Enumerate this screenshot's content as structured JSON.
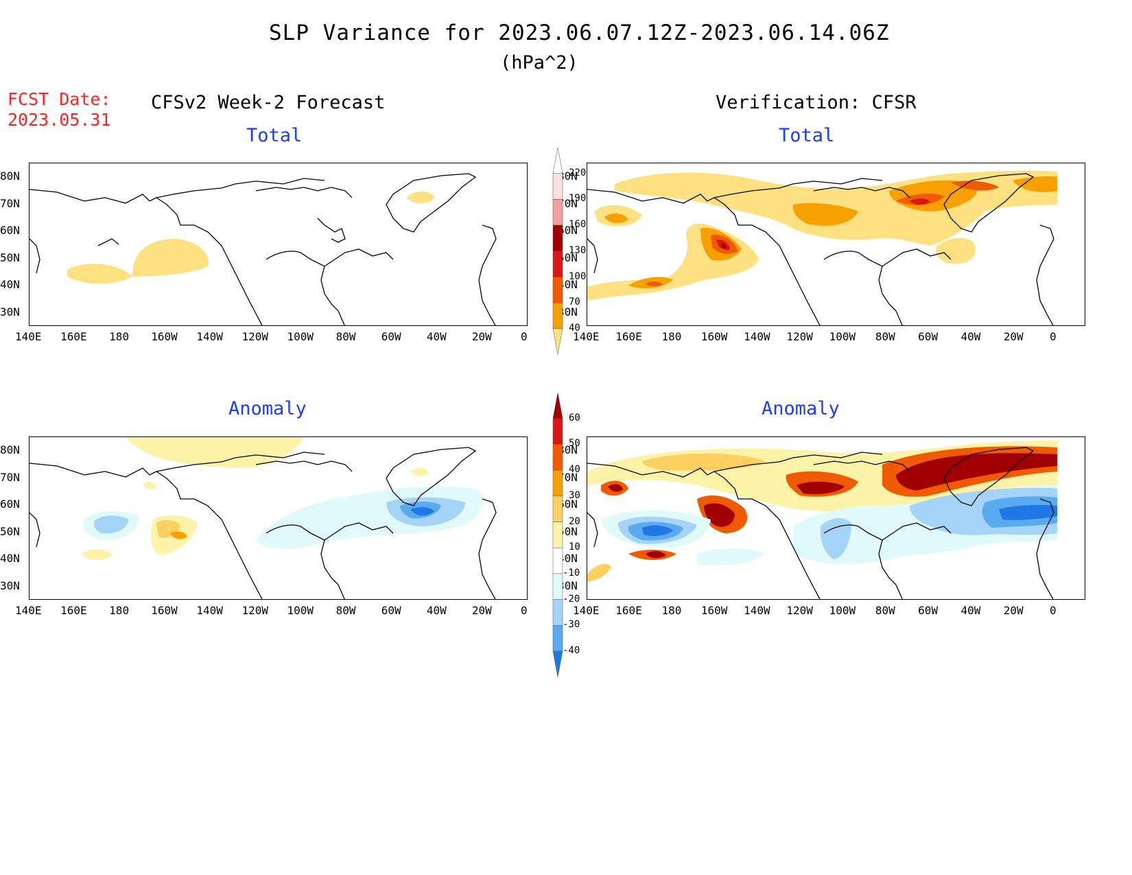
{
  "header": {
    "title": "SLP Variance for 2023.06.07.12Z-2023.06.14.06Z",
    "units": "(hPa^2)",
    "fcst_label": "FCST Date:",
    "fcst_date": "2023.05.31",
    "left_heading": "CFSv2 Week-2 Forecast",
    "right_heading": "Verification: CFSR"
  },
  "panels": {
    "fcst_total_title": "Total",
    "verif_total_title": "Total",
    "fcst_anom_title": "Anomaly",
    "verif_anom_title": "Anomaly"
  },
  "axes": {
    "lat_labels": [
      "80N",
      "70N",
      "60N",
      "50N",
      "40N",
      "30N"
    ],
    "lon_labels": [
      "140E",
      "160E",
      "180",
      "160W",
      "140W",
      "120W",
      "100W",
      "80W",
      "60W",
      "40W",
      "20W",
      "0"
    ]
  },
  "colorbars": {
    "total": {
      "labels": [
        "220",
        "190",
        "160",
        "130",
        "100",
        "70",
        "40"
      ],
      "colors": [
        "#ffffff",
        "#fde0e0",
        "#f2a0a0",
        "#a00000",
        "#d81818",
        "#f05a00",
        "#f7a000",
        "#fde080"
      ]
    },
    "anomaly": {
      "labels": [
        "60",
        "50",
        "40",
        "30",
        "20",
        "10",
        "-10",
        "-20",
        "-30",
        "-40"
      ],
      "colors": [
        "#a00000",
        "#d81818",
        "#f05a00",
        "#f7a000",
        "#fccf60",
        "#fdf3a8",
        "#ffffff",
        "#e0fafc",
        "#a6d4f8",
        "#5aaaf0",
        "#1f78e6"
      ]
    }
  }
}
